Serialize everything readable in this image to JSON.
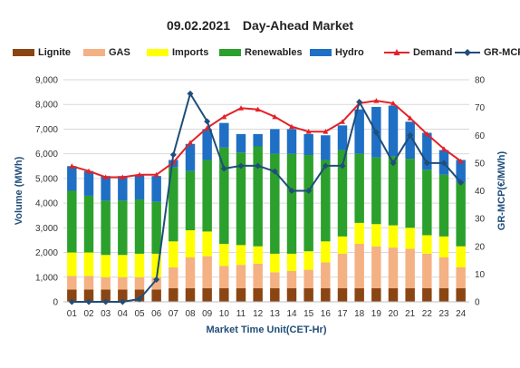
{
  "title_date": "09.02.2021",
  "title_main": "Day-Ahead Market",
  "legend": [
    {
      "name": "Lignite",
      "color": "#8b4513",
      "kind": "bar"
    },
    {
      "name": "GAS",
      "color": "#f4b183",
      "kind": "bar"
    },
    {
      "name": "Imports",
      "color": "#ffff00",
      "kind": "bar"
    },
    {
      "name": "Renewables",
      "color": "#2ca02c",
      "kind": "bar"
    },
    {
      "name": "Hydro",
      "color": "#1f6fc5",
      "kind": "bar"
    },
    {
      "name": "Demand",
      "color": "#e32227",
      "kind": "line"
    },
    {
      "name": "GR-MCP",
      "color": "#1f4e79",
      "kind": "line"
    }
  ],
  "chart_data": {
    "type": "bar",
    "title": "09.02.2021 Day-Ahead Market",
    "xlabel": "Market Time Unit(CET-Hr)",
    "ylabel": "Volume (MWh)",
    "y2label": "GR-MCP(€/MWh)",
    "ylim": [
      0,
      9000
    ],
    "y2lim": [
      0,
      80
    ],
    "yticks": [
      "0",
      "1,000",
      "2,000",
      "3,000",
      "4,000",
      "5,000",
      "6,000",
      "7,000",
      "8,000",
      "9,000"
    ],
    "y2ticks": [
      "0",
      "10",
      "20",
      "30",
      "40",
      "50",
      "60",
      "70",
      "80"
    ],
    "categories": [
      "01",
      "02",
      "03",
      "04",
      "05",
      "06",
      "07",
      "08",
      "09",
      "10",
      "11",
      "12",
      "13",
      "14",
      "15",
      "16",
      "17",
      "18",
      "19",
      "20",
      "21",
      "22",
      "23",
      "24"
    ],
    "series": [
      {
        "name": "Lignite",
        "kind": "stacked-bar",
        "values": [
          500,
          500,
          500,
          500,
          500,
          500,
          550,
          550,
          550,
          550,
          550,
          550,
          550,
          550,
          550,
          550,
          550,
          550,
          550,
          550,
          550,
          550,
          550,
          550
        ]
      },
      {
        "name": "GAS",
        "kind": "stacked-bar",
        "values": [
          550,
          550,
          500,
          500,
          500,
          500,
          850,
          1250,
          1300,
          900,
          950,
          1000,
          650,
          700,
          750,
          1050,
          1400,
          1800,
          1700,
          1650,
          1600,
          1400,
          1250,
          850
        ]
      },
      {
        "name": "Imports",
        "kind": "stacked-bar",
        "values": [
          950,
          950,
          900,
          900,
          950,
          950,
          1050,
          1100,
          1000,
          900,
          800,
          700,
          750,
          700,
          750,
          850,
          700,
          850,
          900,
          900,
          850,
          750,
          850,
          850
        ]
      },
      {
        "name": "Renewables",
        "kind": "stacked-bar",
        "values": [
          2500,
          2300,
          2200,
          2200,
          2200,
          2100,
          3000,
          2400,
          2900,
          3900,
          3750,
          4050,
          4050,
          4050,
          3900,
          3300,
          3500,
          2800,
          2700,
          2800,
          2800,
          2650,
          2500,
          2600
        ]
      },
      {
        "name": "Hydro",
        "kind": "stacked-bar",
        "values": [
          1000,
          1000,
          1000,
          1000,
          1000,
          1050,
          300,
          1100,
          1250,
          1000,
          750,
          500,
          1000,
          1000,
          850,
          1000,
          1000,
          1800,
          2050,
          2050,
          1500,
          1500,
          1000,
          900
        ]
      },
      {
        "name": "Demand",
        "kind": "line",
        "axis": "left",
        "values": [
          5500,
          5300,
          5050,
          5050,
          5150,
          5150,
          5650,
          6450,
          7050,
          7500,
          7850,
          7800,
          7500,
          7100,
          6900,
          6900,
          7300,
          8050,
          8150,
          8050,
          7450,
          6800,
          6200,
          5700
        ]
      },
      {
        "name": "GR-MCP",
        "kind": "line",
        "axis": "right",
        "values": [
          0,
          0,
          0,
          0,
          1,
          8,
          53,
          75,
          65,
          48,
          49,
          49,
          47,
          40,
          40,
          49,
          49,
          72,
          61,
          50,
          60,
          50,
          50,
          43
        ]
      }
    ],
    "legend": "top",
    "grid": true
  }
}
